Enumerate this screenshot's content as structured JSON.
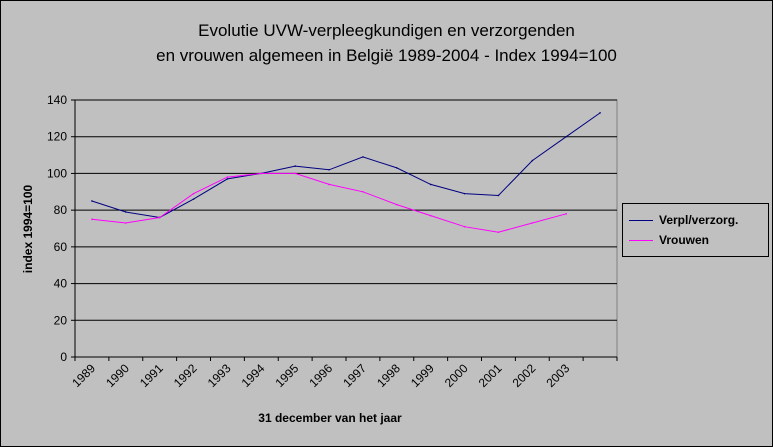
{
  "chart_data": {
    "type": "line",
    "title_line1": "Evolutie UVW-verpleegkundigen en verzorgenden",
    "title_line2": "en vrouwen algemeen in België 1989-2004 - Index 1994=100",
    "xlabel": "31 december van het jaar",
    "ylabel": "index 1994=100",
    "categories": [
      "1989",
      "1990",
      "1991",
      "1992",
      "1993",
      "1994",
      "1995",
      "1996",
      "1997",
      "1998",
      "1999",
      "2000",
      "2001",
      "2002",
      "2003",
      ""
    ],
    "ylim": [
      0,
      140
    ],
    "yticks": [
      0,
      20,
      40,
      60,
      80,
      100,
      120,
      140
    ],
    "grid": true,
    "legend_position": "right",
    "series": [
      {
        "name": "Verpl/verzorg.",
        "color": "#000080",
        "values": [
          85,
          79,
          76,
          86,
          97,
          100,
          104,
          102,
          109,
          103,
          94,
          89,
          88,
          107,
          120,
          133
        ]
      },
      {
        "name": "Vrouwen",
        "color": "#ff00ff",
        "values": [
          75,
          73,
          76,
          89,
          98,
          100,
          100,
          94,
          90,
          83,
          77,
          71,
          68,
          73,
          78,
          null
        ]
      }
    ],
    "plot_background": "#c0c0c0",
    "gridline_color": "#000000"
  }
}
